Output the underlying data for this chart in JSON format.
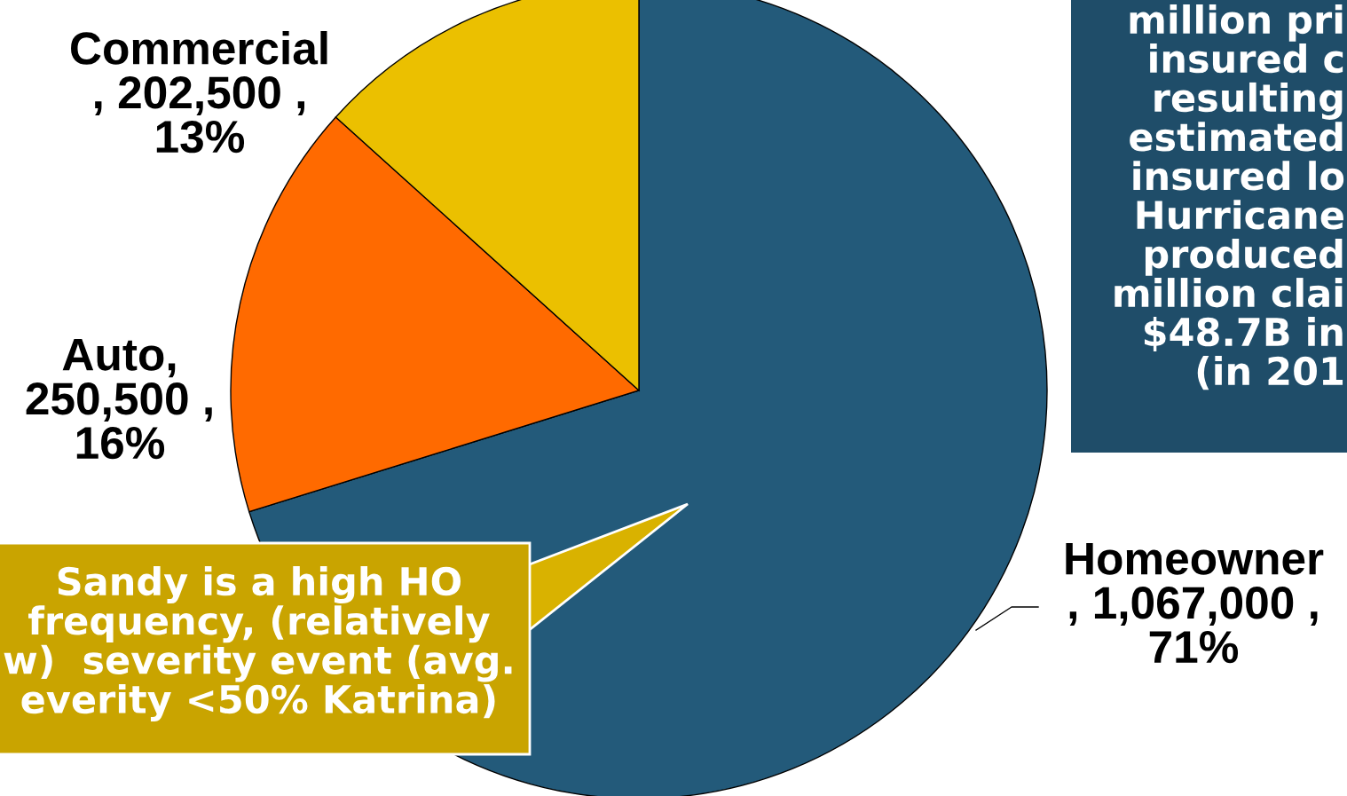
{
  "chart_data": {
    "type": "pie",
    "categories": [
      "Homeowner",
      "Auto",
      "Commercial"
    ],
    "values": [
      1067000,
      250500,
      202500
    ],
    "colors": [
      "#235a7a",
      "#ff6a00",
      "#ebc000"
    ],
    "value_labels": [
      ", 1,067,000 ,\n71%",
      ",\n250,500 ,\n16%",
      ", 202,500 ,\n13%"
    ],
    "annotations": [
      "million pri\ninsured c\nresulting\nestimated\ninsured lo\nHurricane\nproduced\nmillion clai\n$48.7B in\n(in 201",
      "Sandy is a high HO\nfrequency, (relatively\nw)  severity event (avg.\neverity <50% Katrina)"
    ]
  }
}
